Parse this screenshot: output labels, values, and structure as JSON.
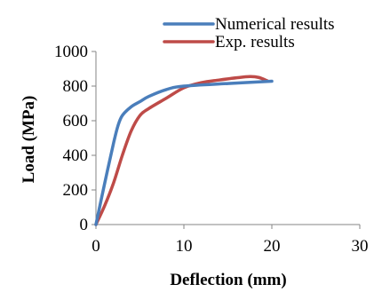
{
  "chart_data": {
    "type": "line",
    "xlabel": "Deflection (mm)",
    "ylabel": "Load (MPa)",
    "xlim": [
      0,
      30
    ],
    "ylim": [
      0,
      1000
    ],
    "x_ticks": [
      "0",
      "10",
      "20",
      "30"
    ],
    "y_ticks": [
      "0",
      "200",
      "400",
      "600",
      "800",
      "1000"
    ],
    "grid": false,
    "legend": "top-right",
    "series": [
      {
        "name": "Numerical results",
        "color": "#4A7EBB",
        "x": [
          0,
          1,
          2,
          2.5,
          3,
          4,
          5,
          6,
          8,
          10,
          15,
          20
        ],
        "y": [
          0,
          240,
          470,
          570,
          630,
          680,
          710,
          740,
          780,
          800,
          815,
          828
        ]
      },
      {
        "name": "Exp. results",
        "color": "#BE4B48",
        "x": [
          0,
          1,
          2,
          3,
          4,
          5,
          6,
          8,
          10,
          12,
          14,
          16,
          17.5,
          18.5,
          19.5
        ],
        "y": [
          0,
          110,
          240,
          400,
          540,
          630,
          670,
          730,
          790,
          820,
          835,
          848,
          855,
          850,
          830
        ]
      }
    ]
  }
}
